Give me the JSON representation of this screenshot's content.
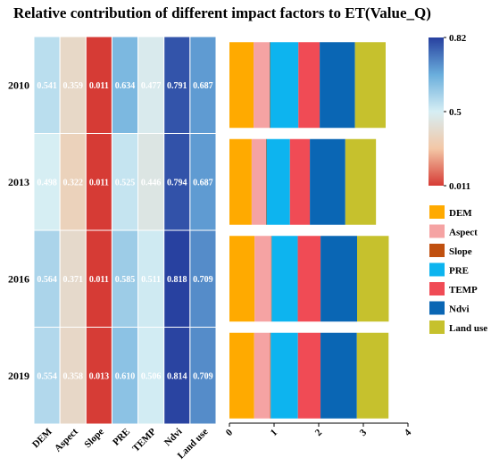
{
  "chart_data": [
    {
      "type": "heatmap",
      "title": "Relative contribution of different impact factors to ET(Value_Q)",
      "rows": [
        "2010",
        "2013",
        "2016",
        "2019"
      ],
      "columns": [
        "DEM",
        "Aspect",
        "Slope",
        "PRE",
        "TEMP",
        "Ndvi",
        "Land use"
      ],
      "values": [
        [
          0.541,
          0.359,
          0.011,
          0.634,
          0.477,
          0.791,
          0.687
        ],
        [
          0.498,
          0.322,
          0.011,
          0.525,
          0.446,
          0.794,
          0.687
        ],
        [
          0.564,
          0.371,
          0.011,
          0.585,
          0.511,
          0.818,
          0.709
        ],
        [
          0.554,
          0.358,
          0.013,
          0.61,
          0.506,
          0.814,
          0.709
        ]
      ],
      "value_labels": [
        [
          "0.541",
          "0.359",
          "0.011",
          "0.634",
          "0.477",
          "0.791",
          "0.687"
        ],
        [
          "0.498",
          "0.322",
          "0.011",
          "0.525",
          "0.446",
          "0.794",
          "0.687"
        ],
        [
          "0.564",
          "0.371",
          "0.011",
          "0.585",
          "0.511",
          "0.818",
          "0.709"
        ],
        [
          "0.554",
          "0.358",
          "0.013",
          "0.610",
          "0.506",
          "0.814",
          "0.709"
        ]
      ],
      "colorbar": {
        "min": 0.011,
        "mid": 0.5,
        "max": 0.82,
        "tick_labels": [
          "0.82",
          "0.5",
          "0.011"
        ],
        "colors": [
          "#d63b35",
          "#f3c7a6",
          "#d6eef4",
          "#6aaedc",
          "#27409f"
        ]
      }
    },
    {
      "type": "bar",
      "orientation": "horizontal",
      "stacked": true,
      "categories": [
        "2010",
        "2013",
        "2016",
        "2019"
      ],
      "series": [
        {
          "name": "DEM",
          "color": "#ffaa00",
          "values": [
            0.541,
            0.498,
            0.564,
            0.554
          ]
        },
        {
          "name": "Aspect",
          "color": "#f5a3a3",
          "values": [
            0.359,
            0.322,
            0.371,
            0.358
          ]
        },
        {
          "name": "Slope",
          "color": "#c0500f",
          "values": [
            0.011,
            0.011,
            0.011,
            0.013
          ]
        },
        {
          "name": "PRE",
          "color": "#0db4ef",
          "values": [
            0.634,
            0.525,
            0.585,
            0.61
          ]
        },
        {
          "name": "TEMP",
          "color": "#f04b55",
          "values": [
            0.477,
            0.446,
            0.511,
            0.506
          ]
        },
        {
          "name": "Ndvi",
          "color": "#0a66b4",
          "values": [
            0.791,
            0.794,
            0.818,
            0.814
          ]
        },
        {
          "name": "Land use",
          "color": "#c6c12d",
          "values": [
            0.687,
            0.687,
            0.709,
            0.709
          ]
        }
      ],
      "xlim": [
        0,
        4
      ],
      "x_ticks": [
        "0",
        "1",
        "2",
        "3",
        "4"
      ],
      "legend": "right"
    }
  ]
}
